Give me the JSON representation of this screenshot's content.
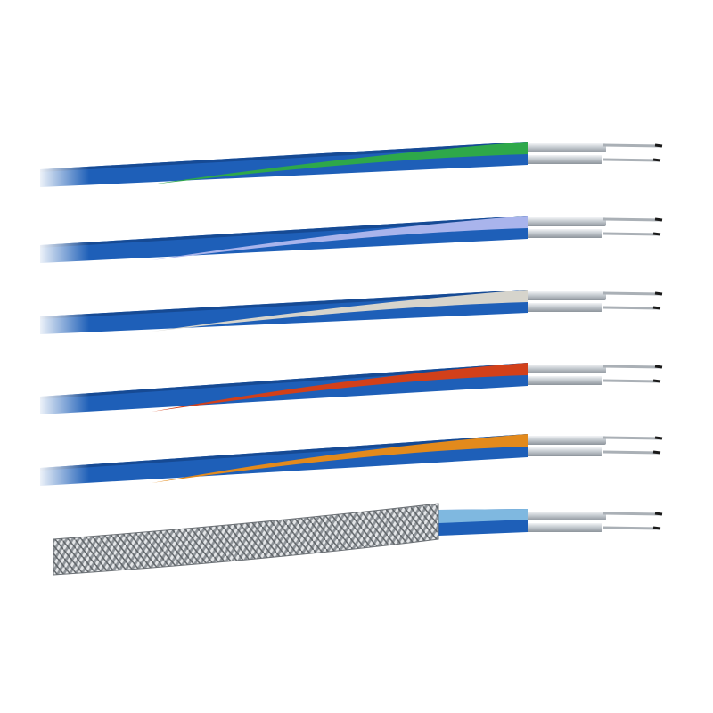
{
  "colors": {
    "jacket": "#1e5fb8",
    "jacket_dark": "#164a94",
    "conductor": "#c9ced3",
    "wire_tip": "#1a1a1a",
    "braid": "#9a9ea3"
  },
  "cables": [
    {
      "type": "striped",
      "stripe": "#2ea84a"
    },
    {
      "type": "striped",
      "stripe": "#a9b4ec"
    },
    {
      "type": "striped",
      "stripe": "#d6d4cc"
    },
    {
      "type": "striped",
      "stripe": "#d2401a"
    },
    {
      "type": "striped",
      "stripe": "#e38a1c"
    },
    {
      "type": "braided",
      "stripe": "#7fb8e0"
    }
  ]
}
